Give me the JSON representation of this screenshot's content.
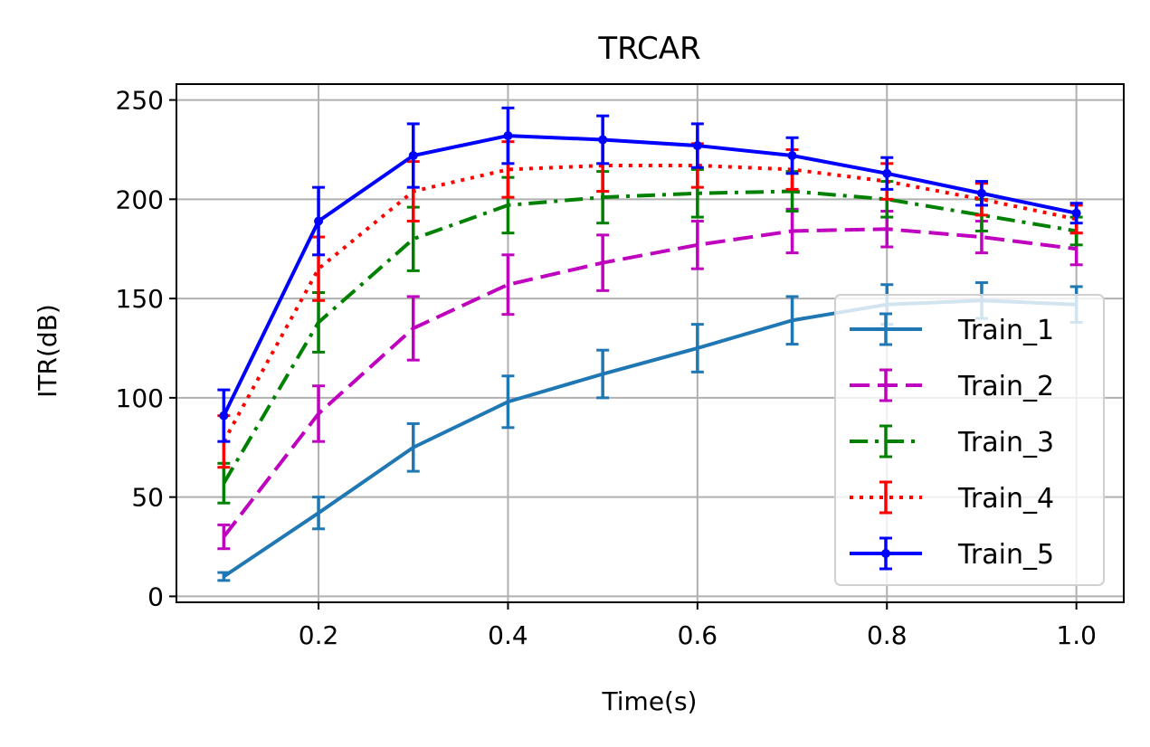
{
  "chart_data": {
    "type": "line",
    "title": "TRCAR",
    "xlabel": "Time(s)",
    "ylabel": "ITR(dB)",
    "xlim": [
      0.05,
      1.05
    ],
    "ylim": [
      -3,
      258
    ],
    "xticks": [
      0.2,
      0.4,
      0.6,
      0.8,
      1.0
    ],
    "xtick_labels": [
      "0.2",
      "0.4",
      "0.6",
      "0.8",
      "1.0"
    ],
    "yticks": [
      0,
      50,
      100,
      150,
      200,
      250
    ],
    "ytick_labels": [
      "0",
      "50",
      "100",
      "150",
      "200",
      "250"
    ],
    "grid": true,
    "legend_position": "lower-right",
    "x": [
      0.1,
      0.2,
      0.3,
      0.4,
      0.5,
      0.6,
      0.7,
      0.8,
      0.9,
      1.0
    ],
    "series": [
      {
        "name": "Train_1",
        "color": "#1f77b4",
        "line_style": "solid",
        "marker": "none",
        "values": [
          10,
          42,
          75,
          98,
          112,
          125,
          139,
          147,
          149,
          147
        ],
        "errors": [
          2,
          8,
          12,
          13,
          12,
          12,
          12,
          10,
          9,
          9
        ]
      },
      {
        "name": "Train_2",
        "color": "#bf00bf",
        "line_style": "dashed",
        "marker": "none",
        "values": [
          30,
          92,
          135,
          157,
          168,
          177,
          184,
          185,
          181,
          175
        ],
        "errors": [
          6,
          14,
          16,
          15,
          14,
          12,
          11,
          9,
          8,
          8
        ]
      },
      {
        "name": "Train_3",
        "color": "#008000",
        "line_style": "dashdot",
        "marker": "none",
        "values": [
          57,
          138,
          180,
          197,
          201,
          203,
          204,
          200,
          192,
          184
        ],
        "errors": [
          10,
          15,
          16,
          14,
          13,
          12,
          10,
          9,
          8,
          7
        ]
      },
      {
        "name": "Train_4",
        "color": "#ff0000",
        "line_style": "dotted",
        "marker": "none",
        "values": [
          78,
          165,
          204,
          215,
          217,
          217,
          215,
          209,
          200,
          190
        ],
        "errors": [
          13,
          16,
          15,
          14,
          13,
          11,
          10,
          9,
          8,
          7
        ]
      },
      {
        "name": "Train_5",
        "color": "#0000ff",
        "line_style": "solid",
        "marker": "dot",
        "values": [
          91,
          189,
          222,
          232,
          230,
          227,
          222,
          213,
          203,
          193
        ],
        "errors": [
          13,
          17,
          16,
          14,
          12,
          11,
          9,
          8,
          6,
          5
        ]
      }
    ]
  }
}
